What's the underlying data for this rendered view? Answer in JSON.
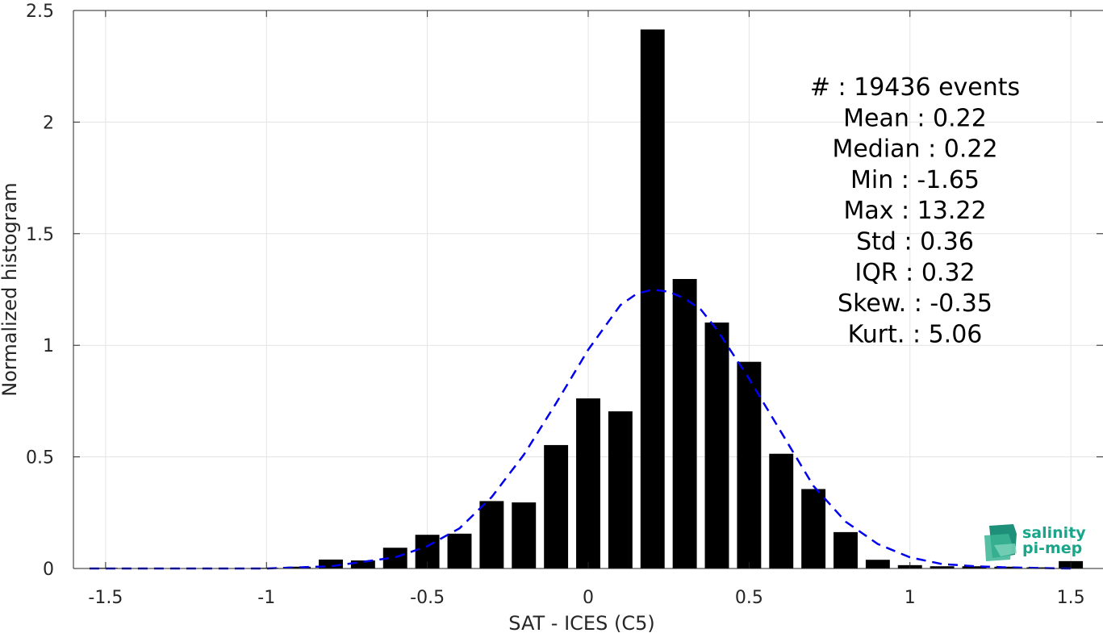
{
  "chart_data": {
    "type": "bar",
    "xlabel": "SAT - ICES (C5)",
    "ylabel": "Normalized histogram",
    "xlim": [
      -1.6,
      1.6
    ],
    "ylim": [
      0,
      2.5
    ],
    "grid": true,
    "xticks": [
      -1.5,
      -1,
      -0.5,
      0,
      0.5,
      1,
      1.5
    ],
    "xtick_labels": [
      "-1.5",
      "-1",
      "-0.5",
      "0",
      "0.5",
      "1",
      "1.5"
    ],
    "yticks": [
      0,
      0.5,
      1,
      1.5,
      2,
      2.5
    ],
    "ytick_labels": [
      "0",
      "0.5",
      "1",
      "1.5",
      "2",
      "2.5"
    ],
    "bar_width": 0.075,
    "bar_color": "#000000",
    "x": [
      -1.5,
      -1.4,
      -1.3,
      -1.2,
      -1.1,
      -1.0,
      -0.9,
      -0.8,
      -0.7,
      -0.6,
      -0.5,
      -0.4,
      -0.3,
      -0.2,
      -0.1,
      0.0,
      0.1,
      0.2,
      0.3,
      0.4,
      0.5,
      0.6,
      0.7,
      0.8,
      0.9,
      1.0,
      1.1,
      1.2,
      1.3,
      1.4,
      1.5
    ],
    "values": [
      0.003,
      0.0,
      0.0,
      0.0,
      0.0,
      0.003,
      0.008,
      0.04,
      0.036,
      0.093,
      0.151,
      0.156,
      0.302,
      0.296,
      0.553,
      0.762,
      0.704,
      2.415,
      1.297,
      1.102,
      0.926,
      0.514,
      0.356,
      0.163,
      0.039,
      0.015,
      0.01,
      0.01,
      0.008,
      0.005,
      0.033
    ],
    "fit_curve": {
      "style": "dashed",
      "color": "#0000ee",
      "x": [
        -1.55,
        -1.3,
        -1.0,
        -0.8,
        -0.6,
        -0.5,
        -0.4,
        -0.3,
        -0.2,
        -0.1,
        0.0,
        0.1,
        0.15,
        0.2,
        0.25,
        0.3,
        0.35,
        0.4,
        0.5,
        0.6,
        0.7,
        0.8,
        0.9,
        1.0,
        1.1,
        1.2,
        1.3,
        1.4,
        1.5
      ],
      "y": [
        0.0,
        0.0,
        0.0,
        0.01,
        0.05,
        0.1,
        0.18,
        0.32,
        0.51,
        0.74,
        0.98,
        1.18,
        1.23,
        1.25,
        1.24,
        1.21,
        1.16,
        1.07,
        0.85,
        0.61,
        0.37,
        0.21,
        0.11,
        0.05,
        0.02,
        0.01,
        0.005,
        0.002,
        0.0
      ]
    },
    "annotations": [
      "#  : 19436 events",
      "Mean : 0.22",
      "Median : 0.22",
      "Min : -1.65",
      "Max : 13.22",
      "Std : 0.36",
      "IQR : 0.32",
      "Skew. : -0.35",
      "Kurt. : 5.06"
    ]
  },
  "logo": {
    "line1": "salinity",
    "line2": "pi-mep",
    "color": "#1aa58a"
  }
}
